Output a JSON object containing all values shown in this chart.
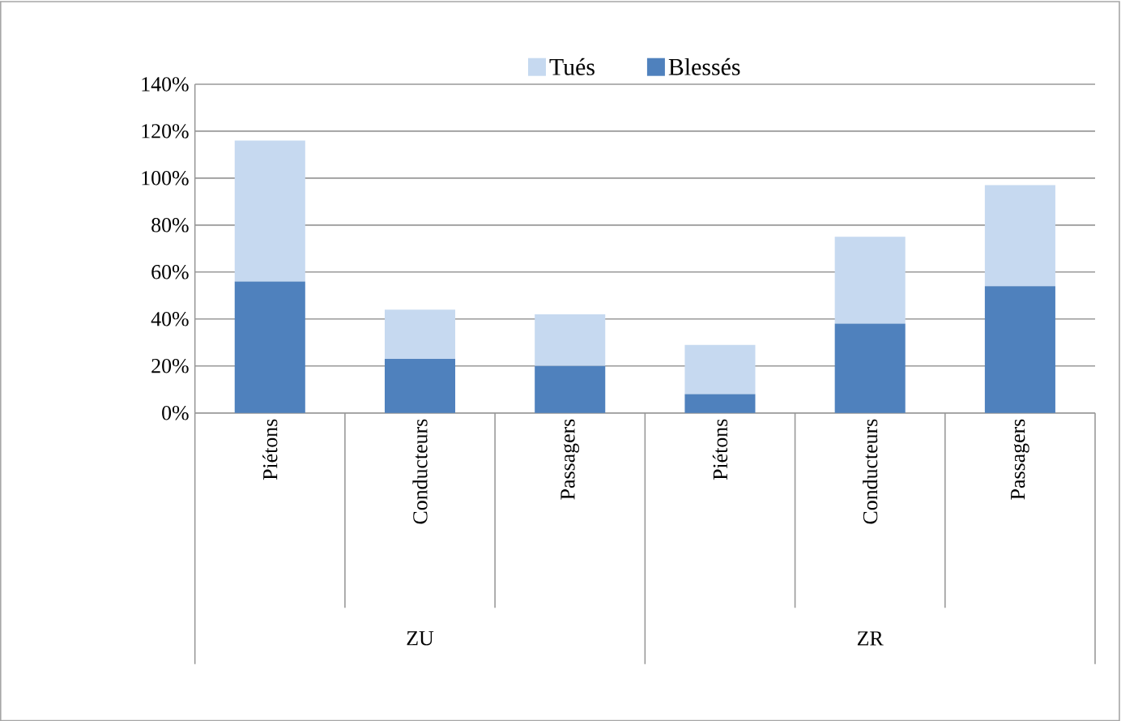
{
  "chart_data": {
    "type": "bar",
    "stacked": true,
    "categories": [
      "Piétons",
      "Conducteurs",
      "Passagers",
      "Piétons",
      "Conducteurs",
      "Passagers"
    ],
    "series": [
      {
        "name": "Blessés",
        "color": "#4f81bd",
        "values": [
          56,
          23,
          20,
          8,
          38,
          54
        ]
      },
      {
        "name": "Tués",
        "color": "#c6d9f0",
        "values": [
          60,
          21,
          22,
          21,
          37,
          43
        ]
      }
    ],
    "ylim": [
      0,
      140
    ],
    "yticks": [
      {
        "value": 0,
        "label": "0%"
      },
      {
        "value": 20,
        "label": "20%"
      },
      {
        "value": 40,
        "label": "40%"
      },
      {
        "value": 60,
        "label": "60%"
      },
      {
        "value": 80,
        "label": "80%"
      },
      {
        "value": 100,
        "label": "100%"
      },
      {
        "value": 120,
        "label": "120%"
      },
      {
        "value": 140,
        "label": "140%"
      }
    ],
    "grid": "y",
    "legend": "top",
    "annotations": [
      "ZU",
      "ZR"
    ]
  }
}
